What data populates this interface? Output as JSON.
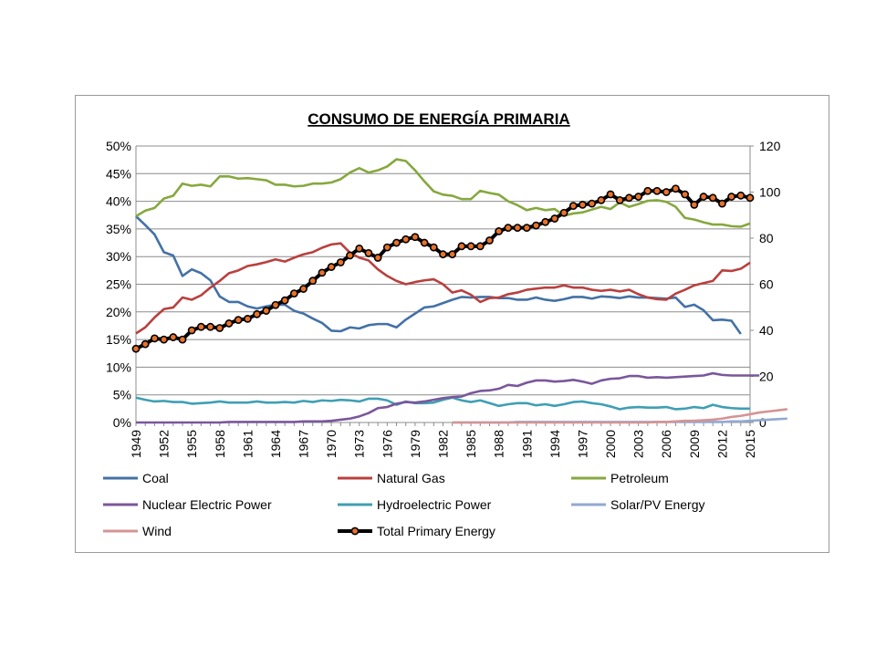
{
  "chart_data": {
    "type": "line",
    "title": "CONSUMO DE ENERGÍA PRIMARIA",
    "xlabel": "",
    "ylabel": "",
    "ylim": [
      0,
      0.5
    ],
    "y2lim": [
      0,
      120
    ],
    "y_ticks": [
      "0%",
      "5%",
      "10%",
      "15%",
      "20%",
      "25%",
      "30%",
      "35%",
      "40%",
      "45%",
      "50%"
    ],
    "y2_ticks": [
      "0",
      "20",
      "40",
      "60",
      "80",
      "100",
      "120"
    ],
    "x_start": 1949,
    "x_end": 2015,
    "x_tick_labels": [
      "1949",
      "1952",
      "1955",
      "1958",
      "1961",
      "1964",
      "1967",
      "1970",
      "1973",
      "1976",
      "1979",
      "1982",
      "1985",
      "1988",
      "1991",
      "1994",
      "1997",
      "2000",
      "2003",
      "2006",
      "2009",
      "2012",
      "2015"
    ],
    "series": [
      {
        "name": "Coal",
        "axis": "left",
        "color": "#4471a6",
        "start": 1949,
        "values": [
          0.373,
          0.357,
          0.34,
          0.308,
          0.302,
          0.265,
          0.277,
          0.27,
          0.257,
          0.228,
          0.218,
          0.218,
          0.21,
          0.206,
          0.21,
          0.213,
          0.213,
          0.202,
          0.197,
          0.188,
          0.18,
          0.166,
          0.165,
          0.172,
          0.17,
          0.176,
          0.178,
          0.178,
          0.172,
          0.186,
          0.197,
          0.208,
          0.21,
          0.216,
          0.222,
          0.227,
          0.226,
          0.227,
          0.227,
          0.225,
          0.225,
          0.222,
          0.222,
          0.226,
          0.222,
          0.22,
          0.223,
          0.227,
          0.227,
          0.224,
          0.228,
          0.227,
          0.225,
          0.228,
          0.226,
          0.226,
          0.225,
          0.224,
          0.226,
          0.209,
          0.213,
          0.203,
          0.185,
          0.186,
          0.184,
          0.16
        ]
      },
      {
        "name": "Natural Gas",
        "axis": "left",
        "color": "#b9403e",
        "start": 1949,
        "values": [
          0.161,
          0.172,
          0.19,
          0.205,
          0.208,
          0.226,
          0.222,
          0.23,
          0.244,
          0.256,
          0.27,
          0.275,
          0.283,
          0.286,
          0.29,
          0.295,
          0.291,
          0.298,
          0.304,
          0.308,
          0.316,
          0.322,
          0.324,
          0.307,
          0.298,
          0.293,
          0.277,
          0.265,
          0.256,
          0.25,
          0.254,
          0.257,
          0.259,
          0.25,
          0.235,
          0.239,
          0.231,
          0.218,
          0.225,
          0.226,
          0.232,
          0.235,
          0.24,
          0.242,
          0.244,
          0.244,
          0.248,
          0.244,
          0.244,
          0.24,
          0.238,
          0.24,
          0.237,
          0.24,
          0.232,
          0.226,
          0.223,
          0.222,
          0.233,
          0.24,
          0.248,
          0.252,
          0.256,
          0.275,
          0.274,
          0.278,
          0.289
        ]
      },
      {
        "name": "Petroleum",
        "axis": "left",
        "color": "#86a83e",
        "start": 1949,
        "values": [
          0.373,
          0.383,
          0.388,
          0.405,
          0.41,
          0.432,
          0.428,
          0.43,
          0.427,
          0.445,
          0.445,
          0.441,
          0.442,
          0.44,
          0.438,
          0.43,
          0.43,
          0.427,
          0.428,
          0.432,
          0.432,
          0.434,
          0.44,
          0.452,
          0.46,
          0.452,
          0.456,
          0.463,
          0.476,
          0.473,
          0.456,
          0.436,
          0.418,
          0.412,
          0.41,
          0.404,
          0.404,
          0.419,
          0.415,
          0.412,
          0.4,
          0.393,
          0.384,
          0.388,
          0.384,
          0.386,
          0.374,
          0.378,
          0.38,
          0.385,
          0.39,
          0.386,
          0.398,
          0.39,
          0.395,
          0.401,
          0.402,
          0.399,
          0.39,
          0.37,
          0.367,
          0.362,
          0.358,
          0.358,
          0.355,
          0.354,
          0.36
        ]
      },
      {
        "name": "Nuclear Electric Power",
        "axis": "left",
        "color": "#7a579b",
        "start": 1949,
        "values": [
          0,
          0,
          0,
          0,
          0,
          0,
          0,
          0,
          0,
          0,
          0.001,
          0.001,
          0.001,
          0.001,
          0.001,
          0.001,
          0.001,
          0.001,
          0.002,
          0.002,
          0.002,
          0.003,
          0.005,
          0.007,
          0.011,
          0.017,
          0.026,
          0.028,
          0.034,
          0.037,
          0.036,
          0.038,
          0.041,
          0.044,
          0.046,
          0.047,
          0.053,
          0.057,
          0.058,
          0.061,
          0.068,
          0.066,
          0.072,
          0.076,
          0.076,
          0.074,
          0.075,
          0.077,
          0.074,
          0.07,
          0.076,
          0.079,
          0.08,
          0.084,
          0.084,
          0.081,
          0.082,
          0.081,
          0.082,
          0.083,
          0.084,
          0.085,
          0.089,
          0.086,
          0.085,
          0.085,
          0.085,
          0.085
        ]
      },
      {
        "name": "Hydroelectric Power",
        "axis": "left",
        "color": "#3f9fb4",
        "start": 1949,
        "values": [
          0.045,
          0.041,
          0.038,
          0.039,
          0.037,
          0.037,
          0.034,
          0.035,
          0.036,
          0.038,
          0.036,
          0.036,
          0.036,
          0.038,
          0.036,
          0.036,
          0.037,
          0.036,
          0.039,
          0.037,
          0.04,
          0.039,
          0.041,
          0.04,
          0.038,
          0.043,
          0.043,
          0.04,
          0.032,
          0.038,
          0.035,
          0.035,
          0.036,
          0.041,
          0.045,
          0.04,
          0.037,
          0.04,
          0.035,
          0.03,
          0.033,
          0.035,
          0.035,
          0.031,
          0.033,
          0.03,
          0.033,
          0.037,
          0.038,
          0.035,
          0.033,
          0.029,
          0.024,
          0.027,
          0.028,
          0.027,
          0.027,
          0.028,
          0.024,
          0.025,
          0.028,
          0.026,
          0.032,
          0.028,
          0.026,
          0.025,
          0.025
        ]
      },
      {
        "name": "Solar/PV Energy",
        "axis": "left",
        "color": "#91a9d2",
        "start": 1983,
        "values": [
          0,
          0,
          0,
          0,
          0,
          0,
          0,
          0.001,
          0.001,
          0.001,
          0.001,
          0.001,
          0.001,
          0.001,
          0.001,
          0.001,
          0.001,
          0.001,
          0.001,
          0.001,
          0.001,
          0.001,
          0.001,
          0.001,
          0.001,
          0.001,
          0.001,
          0.001,
          0.001,
          0.001,
          0.002,
          0.002,
          0.003,
          0.004,
          0.005,
          0.006,
          0.007
        ]
      },
      {
        "name": "Wind",
        "axis": "left",
        "color": "#d49493",
        "start": 1983,
        "values": [
          0,
          0,
          0,
          0,
          0,
          0,
          0,
          0,
          0,
          0,
          0,
          0,
          0,
          0,
          0,
          0,
          0,
          0,
          0,
          0,
          0,
          0,
          0.001,
          0.001,
          0.002,
          0.003,
          0.003,
          0.004,
          0.005,
          0.007,
          0.01,
          0.012,
          0.015,
          0.018,
          0.02,
          0.022,
          0.024
        ]
      },
      {
        "name": "Total Primary Energy",
        "axis": "right",
        "color": "#000000",
        "marker_color": "#e8722a",
        "start": 1949,
        "values": [
          32,
          34,
          36.5,
          36,
          37,
          36,
          40,
          41.5,
          41.5,
          41,
          43,
          44.5,
          45,
          47,
          48.5,
          51,
          53,
          56,
          58,
          61.5,
          65,
          67.5,
          69.5,
          72.5,
          75.5,
          73.5,
          71.5,
          76,
          78,
          79.5,
          80.5,
          78,
          76,
          73,
          73,
          76.5,
          76.5,
          76.5,
          79,
          83,
          84.5,
          84.5,
          84.5,
          85.5,
          87,
          88.5,
          91,
          94,
          94.5,
          95,
          96.5,
          99,
          96.5,
          97.5,
          98,
          100.5,
          100.5,
          100,
          101.5,
          99,
          94.5,
          98,
          97.5,
          95,
          98,
          98.5,
          97.5
        ]
      }
    ],
    "legend": [
      "Coal",
      "Natural Gas",
      "Petroleum",
      "Nuclear Electric Power",
      "Hydroelectric Power",
      "Solar/PV Energy",
      "Wind",
      "Total Primary Energy"
    ],
    "legend_placement": "bottom"
  }
}
